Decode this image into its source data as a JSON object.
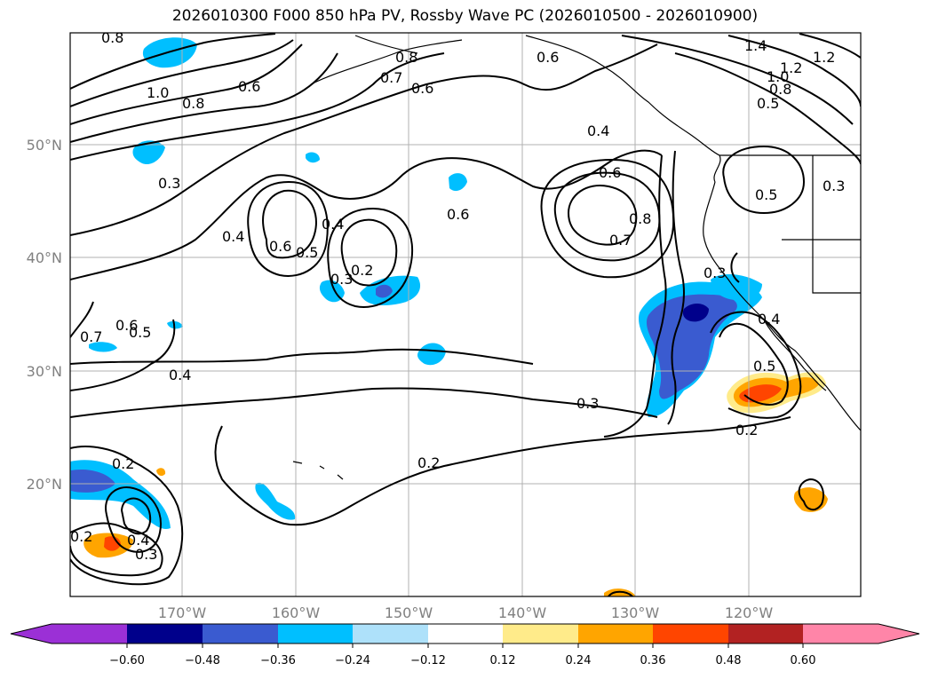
{
  "title": "2026010300 F000 850 hPa PV, Rossby Wave PC (2026010500 - 2026010900)",
  "map": {
    "lat_labels": [
      "50°N",
      "40°N",
      "30°N",
      "20°N"
    ],
    "lon_labels": [
      "170°W",
      "160°W",
      "150°W",
      "140°W",
      "130°W",
      "120°W"
    ],
    "contour_labels": [
      "0.8",
      "1.0",
      "0.8",
      "0.6",
      "0.8",
      "0.7",
      "0.6",
      "0.6",
      "0.4",
      "1.4",
      "1.2",
      "1.2",
      "1.0",
      "0.8",
      "0.5",
      "0.3",
      "0.3",
      "0.6",
      "0.6",
      "0.4",
      "0.6",
      "0.5",
      "0.4",
      "0.3",
      "0.2",
      "0.7",
      "0.8",
      "0.5",
      "0.7",
      "0.6",
      "0.5",
      "0.4",
      "0.4",
      "0.3",
      "0.5",
      "0.3",
      "0.2",
      "0.2",
      "0.2",
      "0.4",
      "0.3",
      "0.2"
    ],
    "colors": {
      "neg_deep": "#00008b",
      "neg_mid": "#3a5bd0",
      "neg_light": "#00bfff",
      "neg_pale": "#aee1fa",
      "pos_pale": "#ffeb8a",
      "pos_mid": "#ffa500",
      "pos_strong": "#ff4500",
      "contour": "#000000"
    }
  },
  "colorbar": {
    "ticks": [
      "−0.60",
      "−0.48",
      "−0.36",
      "−0.24",
      "−0.12",
      "0.12",
      "0.24",
      "0.36",
      "0.48",
      "0.60"
    ],
    "colors": [
      "#9b30d6",
      "#00008b",
      "#3a5bd0",
      "#00bfff",
      "#aee1fa",
      "#ffffff",
      "#ffeb8a",
      "#ffa500",
      "#ff4500",
      "#b22222",
      "#ff85a8"
    ]
  }
}
